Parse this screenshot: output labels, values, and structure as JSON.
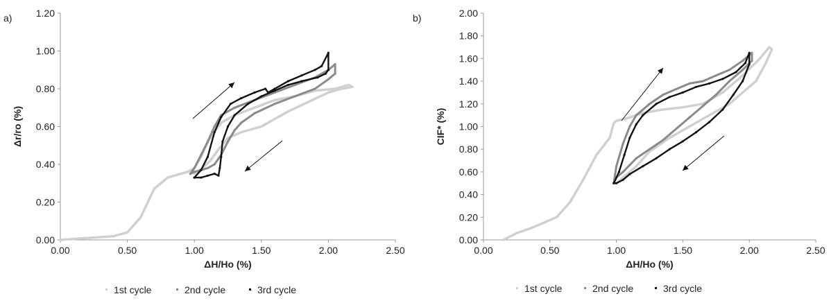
{
  "chart_data": [
    {
      "type": "line",
      "panel_label": "a)",
      "xlabel": "ΔH/Ho (%)",
      "ylabel": "Δr/ro (%)",
      "xlim": [
        0,
        2.5
      ],
      "ylim": [
        0,
        1.2
      ],
      "x_ticks": [
        "0.00",
        "0.50",
        "1.00",
        "1.50",
        "2.00",
        "2.50"
      ],
      "y_ticks": [
        "0.00",
        "0.20",
        "0.40",
        "0.60",
        "0.80",
        "1.00",
        "1.20"
      ],
      "legend_position": "bottom",
      "grid": false,
      "series": [
        {
          "name": "1st cycle",
          "color": "#d0d0d0",
          "x": [
            0.0,
            0.2,
            0.4,
            0.5,
            0.6,
            0.7,
            0.8,
            0.9,
            0.95,
            1.0,
            1.05,
            1.1,
            1.2,
            1.3,
            1.45,
            1.6,
            1.75,
            1.9,
            2.05,
            2.15,
            2.18,
            2.1,
            2.0,
            1.85,
            1.7,
            1.5,
            1.35,
            1.25,
            1.18,
            1.12,
            1.06,
            1.0
          ],
          "y": [
            0.0,
            0.01,
            0.02,
            0.04,
            0.12,
            0.27,
            0.33,
            0.35,
            0.36,
            0.38,
            0.44,
            0.52,
            0.62,
            0.66,
            0.7,
            0.74,
            0.76,
            0.79,
            0.8,
            0.82,
            0.81,
            0.8,
            0.78,
            0.73,
            0.68,
            0.6,
            0.57,
            0.54,
            0.48,
            0.42,
            0.38,
            0.35
          ]
        },
        {
          "name": "2nd cycle",
          "color": "#8a8a8a",
          "x": [
            0.97,
            1.0,
            1.05,
            1.1,
            1.15,
            1.2,
            1.3,
            1.45,
            1.6,
            1.75,
            1.9,
            2.0,
            2.05,
            2.05,
            2.0,
            1.9,
            1.75,
            1.6,
            1.45,
            1.35,
            1.3,
            1.25,
            1.2,
            1.15,
            1.1,
            1.05,
            1.0,
            0.97
          ],
          "y": [
            0.35,
            0.38,
            0.45,
            0.52,
            0.6,
            0.66,
            0.7,
            0.74,
            0.78,
            0.82,
            0.86,
            0.9,
            0.93,
            0.88,
            0.85,
            0.8,
            0.76,
            0.72,
            0.67,
            0.62,
            0.58,
            0.52,
            0.45,
            0.4,
            0.38,
            0.37,
            0.36,
            0.35
          ]
        },
        {
          "name": "3rd cycle",
          "color": "#111111",
          "x": [
            1.0,
            1.05,
            1.1,
            1.15,
            1.2,
            1.27,
            1.35,
            1.45,
            1.53,
            1.55,
            1.6,
            1.7,
            1.8,
            1.9,
            1.95,
            2.0,
            2.0,
            1.98,
            1.92,
            1.8,
            1.7,
            1.6,
            1.5,
            1.4,
            1.3,
            1.25,
            1.21,
            1.2,
            1.19,
            1.18,
            1.15,
            1.1,
            1.05,
            1.0
          ],
          "y": [
            0.33,
            0.37,
            0.44,
            0.57,
            0.65,
            0.72,
            0.75,
            0.78,
            0.8,
            0.78,
            0.8,
            0.84,
            0.87,
            0.9,
            0.92,
            0.99,
            0.9,
            0.88,
            0.86,
            0.84,
            0.82,
            0.79,
            0.76,
            0.72,
            0.66,
            0.6,
            0.52,
            0.44,
            0.38,
            0.34,
            0.35,
            0.34,
            0.33,
            0.33
          ]
        }
      ],
      "annotations": [
        "arrow-up-right (loading)",
        "arrow-down-left (unloading)"
      ]
    },
    {
      "type": "line",
      "panel_label": "b)",
      "xlabel": "ΔH/Ho (%)",
      "ylabel": "CIF* (%)",
      "xlim": [
        0,
        2.5
      ],
      "ylim": [
        0,
        2.0
      ],
      "x_ticks": [
        "0.00",
        "0.50",
        "1.00",
        "1.50",
        "2.00",
        "2.50"
      ],
      "y_ticks": [
        "0.00",
        "0.20",
        "0.40",
        "0.60",
        "0.80",
        "1.00",
        "1.20",
        "1.40",
        "1.60",
        "1.80",
        "2.00"
      ],
      "legend_position": "bottom",
      "grid": false,
      "series": [
        {
          "name": "1st cycle",
          "color": "#d0d0d0",
          "x": [
            0.15,
            0.25,
            0.35,
            0.45,
            0.55,
            0.65,
            0.75,
            0.85,
            0.95,
            0.98,
            1.0,
            1.1,
            1.2,
            1.35,
            1.5,
            1.65,
            1.8,
            1.95,
            2.08,
            2.15,
            2.17,
            2.12,
            2.05,
            1.95,
            1.85,
            1.7,
            1.55,
            1.4,
            1.25,
            1.15,
            1.05,
            1.0
          ],
          "y": [
            0.0,
            0.06,
            0.1,
            0.15,
            0.2,
            0.33,
            0.53,
            0.75,
            0.9,
            1.03,
            1.05,
            1.08,
            1.12,
            1.15,
            1.17,
            1.2,
            1.3,
            1.45,
            1.6,
            1.7,
            1.68,
            1.55,
            1.4,
            1.3,
            1.2,
            1.1,
            1.0,
            0.9,
            0.78,
            0.65,
            0.55,
            0.5
          ]
        },
        {
          "name": "2nd cycle",
          "color": "#8a8a8a",
          "x": [
            0.98,
            1.0,
            1.05,
            1.1,
            1.15,
            1.25,
            1.35,
            1.45,
            1.55,
            1.65,
            1.75,
            1.85,
            1.95,
            2.02,
            2.02,
            1.95,
            1.85,
            1.75,
            1.65,
            1.55,
            1.45,
            1.35,
            1.25,
            1.15,
            1.1,
            1.05,
            1.0,
            0.98
          ],
          "y": [
            0.5,
            0.65,
            0.85,
            1.0,
            1.1,
            1.2,
            1.28,
            1.33,
            1.38,
            1.4,
            1.45,
            1.5,
            1.58,
            1.65,
            1.58,
            1.5,
            1.4,
            1.28,
            1.18,
            1.08,
            0.98,
            0.88,
            0.8,
            0.72,
            0.66,
            0.6,
            0.55,
            0.5
          ]
        },
        {
          "name": "3rd cycle",
          "color": "#111111",
          "x": [
            0.98,
            1.02,
            1.06,
            1.1,
            1.15,
            1.2,
            1.3,
            1.4,
            1.5,
            1.6,
            1.7,
            1.8,
            1.9,
            1.97,
            2.0,
            2.0,
            1.95,
            1.88,
            1.8,
            1.7,
            1.6,
            1.5,
            1.4,
            1.3,
            1.2,
            1.1,
            1.05,
            1.0,
            0.98
          ],
          "y": [
            0.5,
            0.6,
            0.75,
            0.9,
            1.02,
            1.1,
            1.2,
            1.26,
            1.3,
            1.35,
            1.38,
            1.42,
            1.48,
            1.56,
            1.65,
            1.55,
            1.4,
            1.28,
            1.15,
            1.04,
            0.95,
            0.87,
            0.8,
            0.72,
            0.65,
            0.58,
            0.53,
            0.5,
            0.5
          ]
        }
      ],
      "annotations": [
        "arrow-up-right (loading)",
        "arrow-down-left (unloading)"
      ]
    }
  ]
}
